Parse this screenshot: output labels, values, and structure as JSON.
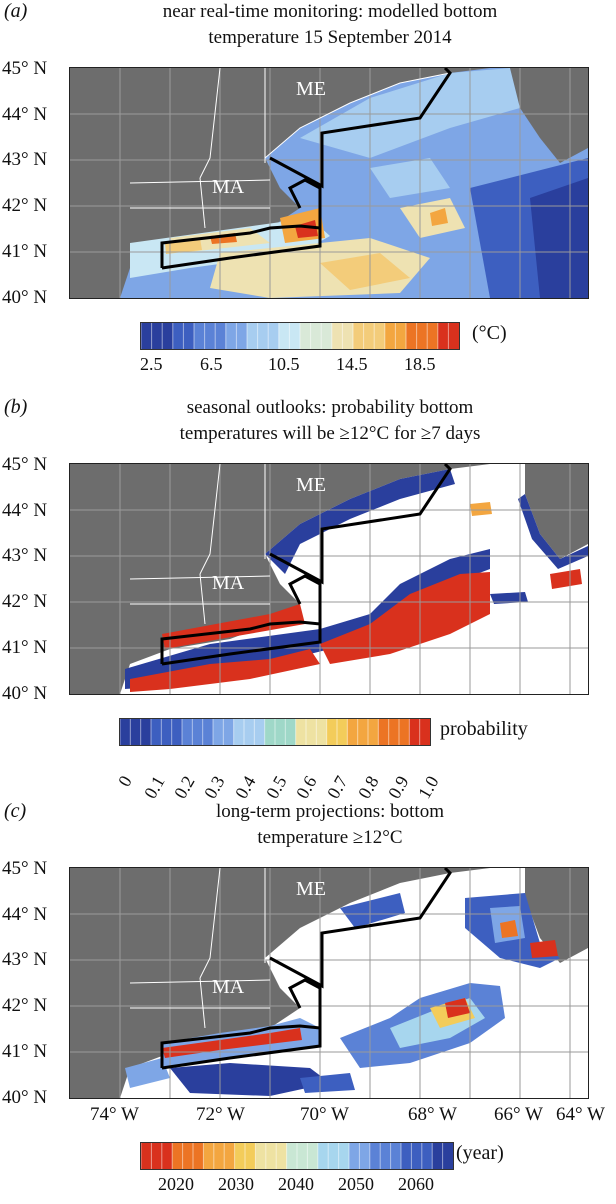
{
  "panels": [
    {
      "label": "(a)",
      "title_lines": [
        "near real-time monitoring: modelled bottom",
        "temperature 15 September 2014"
      ],
      "lat_labels": [
        "45° N",
        "44° N",
        "43° N",
        "42° N",
        "41° N",
        "40° N"
      ],
      "state_labels": [
        "ME",
        "MA"
      ],
      "colorbar": {
        "unit": "(°C)",
        "ticks": [
          "2.5",
          "6.5",
          "10.5",
          "14.5",
          "18.5"
        ],
        "colors": [
          "#2a3f9d",
          "#3d5fc0",
          "#5b82d6",
          "#7ea6e6",
          "#a7cdf0",
          "#c9e7f4",
          "#d9e9d8",
          "#eee2b2",
          "#f3cc7a",
          "#f3a640",
          "#ec7424",
          "#d9311d"
        ]
      }
    },
    {
      "label": "(b)",
      "title_lines": [
        "seasonal outlooks: probability bottom",
        "temperatures will be ≥12°C for ≥7 days"
      ],
      "lat_labels": [
        "45° N",
        "44° N",
        "43° N",
        "42° N",
        "41° N",
        "40° N"
      ],
      "state_labels": [
        "ME",
        "MA"
      ],
      "colorbar": {
        "unit": "probability",
        "ticks": [
          "0",
          "0.1",
          "0.2",
          "0.3",
          "0.4",
          "0.5",
          "0.6",
          "0.7",
          "0.8",
          "0.9",
          "1.0"
        ],
        "colors": [
          "#2a3f9d",
          "#3d5fc0",
          "#5b82d6",
          "#7ea6e6",
          "#a7cdf0",
          "#9fd8c8",
          "#eee2a2",
          "#f3cc5a",
          "#f3a640",
          "#ec7424",
          "#d9311d"
        ]
      }
    },
    {
      "label": "(c)",
      "title_lines": [
        "long-term projections: bottom",
        "temperature ≥12°C"
      ],
      "lat_labels": [
        "45° N",
        "44° N",
        "43° N",
        "42° N",
        "41° N",
        "40° N"
      ],
      "lon_labels": [
        "74° W",
        "72° W",
        "70° W",
        "68° W",
        "66° W",
        "64° W"
      ],
      "state_labels": [
        "ME",
        "MA"
      ],
      "colorbar": {
        "unit": "(year)",
        "ticks": [
          "2020",
          "2030",
          "2040",
          "2050",
          "2060"
        ],
        "colors": [
          "#d9311d",
          "#ec7424",
          "#f3a640",
          "#f3cc5a",
          "#eee2a2",
          "#c9e7d4",
          "#a7d6ee",
          "#7ea6e6",
          "#5b82d6",
          "#3d5fc0",
          "#2a3f9d"
        ]
      }
    }
  ],
  "colors": {
    "land": "#6d6d6d",
    "grid": "#9a9a9a",
    "boundary": "#000000",
    "coast": "#ffffff"
  }
}
